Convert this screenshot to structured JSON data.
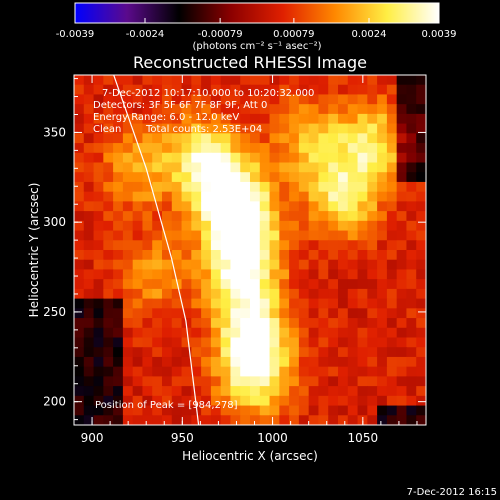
{
  "chart_data": {
    "type": "heatmap",
    "title": "Reconstructed RHESSI Image",
    "xlabel": "Heliocentric X (arcsec)",
    "ylabel": "Heliocentric Y (arcsec)",
    "xlim": [
      890,
      1085
    ],
    "ylim": [
      187,
      382
    ],
    "x_ticks": [
      900,
      950,
      1000,
      1050
    ],
    "y_ticks": [
      200,
      250,
      300,
      350
    ],
    "colorbar": {
      "unit_label": "(photons cm⁻² s⁻¹ asec⁻²)",
      "range": [
        -0.0039,
        0.0039
      ],
      "tick_labels": [
        "-0.0039",
        "-0.0024",
        "-0.00079",
        "0.00079",
        "0.0024",
        "0.0039"
      ],
      "colormap": "blue-purple-black-red-orange-yellow-white",
      "colors": [
        "#0000ff",
        "#5b0a8c",
        "#000000",
        "#8c0000",
        "#e02000",
        "#ff8800",
        "#ffee44",
        "#ffffff"
      ]
    },
    "annotations": {
      "time_range": "7-Dec-2012 10:17:10.000 to 10:20:32.000",
      "detectors": "Detectors: 3F 5F 6F 7F 8F 9F, Att 0",
      "energy": "Energy Range: 6.0 - 12.0 keV",
      "clean_label": "Clean",
      "counts": "Total counts: 2.53E+04",
      "peak": "Position of Peak = [984,278]"
    },
    "peak_position": [
      984,
      278
    ],
    "sources": [
      {
        "x": 984,
        "y": 278,
        "intensity": 0.0039
      },
      {
        "x": 978,
        "y": 310,
        "intensity": 0.0033
      },
      {
        "x": 962,
        "y": 335,
        "intensity": 0.003
      },
      {
        "x": 1040,
        "y": 315,
        "intensity": 0.0026
      },
      {
        "x": 1055,
        "y": 345,
        "intensity": 0.0022
      },
      {
        "x": 990,
        "y": 232,
        "intensity": 0.0029
      },
      {
        "x": 990,
        "y": 210,
        "intensity": 0.002
      },
      {
        "x": 1020,
        "y": 345,
        "intensity": 0.0018
      },
      {
        "x": 925,
        "y": 330,
        "intensity": 0.0016
      },
      {
        "x": 935,
        "y": 270,
        "intensity": 0.0014
      }
    ],
    "limb": [
      [
        912,
        382
      ],
      [
        930,
        330
      ],
      [
        944,
        280
      ],
      [
        952,
        245
      ],
      [
        959,
        187
      ]
    ]
  },
  "footer": {
    "timestamp": "7-Dec-2012 16:15"
  }
}
